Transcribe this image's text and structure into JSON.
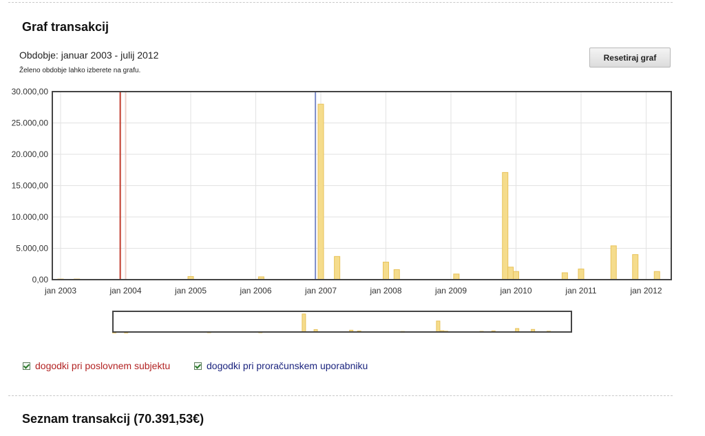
{
  "header": {
    "title": "Graf transakcij"
  },
  "period": {
    "text": "Obdobje: januar 2003 - julij 2012",
    "hint": "Želeno obdobje lahko izberete na grafu."
  },
  "toolbar": {
    "reset_label": "Resetiraj graf"
  },
  "legend": {
    "business": {
      "label": "dogodki pri poslovnem subjektu",
      "color": "#b22222",
      "checked": true
    },
    "budget": {
      "label": "dogodki pri proračunskem uporabniku",
      "color": "#1a237e",
      "checked": true
    }
  },
  "list": {
    "title": "Seznam transakcij (70.391,53€)"
  },
  "chart_data": {
    "type": "bar",
    "ylim": [
      0,
      30000
    ],
    "yticks": [
      "0,00",
      "5.000,00",
      "10.000,00",
      "15.000,00",
      "20.000,00",
      "25.000,00",
      "30.000,00"
    ],
    "xticks": [
      "jan 2003",
      "jan 2004",
      "jan 2005",
      "jan 2006",
      "jan 2007",
      "jan 2008",
      "jan 2009",
      "jan 2010",
      "jan 2011",
      "jan 2012"
    ],
    "grid": true,
    "x": [
      "2003-01",
      "2003-04",
      "2005-01",
      "2006-02",
      "2007-01",
      "2007-04",
      "2008-01",
      "2008-03",
      "2009-02",
      "2009-11",
      "2009-12",
      "2010-01",
      "2010-10",
      "2011-01",
      "2011-07",
      "2011-11",
      "2012-03"
    ],
    "values": [
      100,
      100,
      500,
      450,
      28000,
      3700,
      2800,
      1600,
      900,
      17100,
      2000,
      1300,
      1100,
      1700,
      5400,
      4000,
      1300
    ],
    "bar_color": "#f5dc8c",
    "bar_border": "#e8c25a",
    "markers": [
      {
        "x": "2003-12",
        "color": "#c0392b"
      },
      {
        "x": "2004-01",
        "color": "#f0d0c8"
      },
      {
        "x": "2006-12",
        "color": "#7a8ac8"
      }
    ]
  }
}
